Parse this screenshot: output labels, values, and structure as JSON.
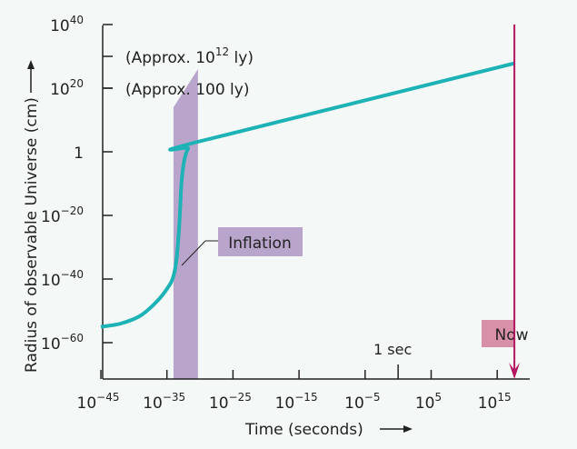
{
  "chart_data": {
    "type": "line",
    "title": "",
    "xlabel": "Time (seconds)",
    "ylabel": "Radius of observable Universe (cm)",
    "x_scale": "log10",
    "y_scale": "log10",
    "xlim_log10": [
      -46,
      19
    ],
    "ylim_log10": [
      -71,
      40
    ],
    "x_ticks": [
      {
        "exp": -45,
        "base": "10",
        "sup": "−45"
      },
      {
        "exp": -35,
        "base": "10",
        "sup": "−35"
      },
      {
        "exp": -25,
        "base": "10",
        "sup": "−25"
      },
      {
        "exp": -15,
        "base": "10",
        "sup": "−15"
      },
      {
        "exp": -5,
        "base": "10",
        "sup": "−5"
      },
      {
        "exp": 5,
        "base": "10",
        "sup": "5"
      },
      {
        "exp": 15,
        "base": "10",
        "sup": "15"
      }
    ],
    "x_special_tick": {
      "exp": 0,
      "label": "1 sec"
    },
    "y_ticks": [
      {
        "exp": 40,
        "base": "10",
        "sup": "40"
      },
      {
        "exp": 20,
        "base": "10",
        "sup": "20"
      },
      {
        "exp": 0,
        "base": "1",
        "sup": ""
      },
      {
        "exp": -20,
        "base": "10",
        "sup": "−20"
      },
      {
        "exp": -40,
        "base": "10",
        "sup": "−40"
      },
      {
        "exp": -60,
        "base": "10",
        "sup": "−60"
      }
    ],
    "y_annotations": [
      {
        "exp": 30,
        "text": "(Approx. 10",
        "sup": "12",
        "tail": " ly)"
      },
      {
        "exp": 20,
        "text": "(Approx. 100 ly)",
        "sup": "",
        "tail": ""
      }
    ],
    "series": [
      {
        "name": "Radius of observable Universe",
        "color": "#1db2b6",
        "points_log10": [
          [
            -45,
            -55
          ],
          [
            -42,
            -54
          ],
          [
            -39,
            -51.5
          ],
          [
            -36.5,
            -47
          ],
          [
            -34.8,
            -42.5
          ],
          [
            -34,
            -39
          ],
          [
            -33.5,
            -33
          ],
          [
            -33.1,
            -22
          ],
          [
            -32.8,
            -10
          ],
          [
            -32.4,
            -3
          ],
          [
            -31.8,
            1
          ],
          [
            -30.6,
            3
          ],
          [
            17.6,
            27.8
          ]
        ]
      }
    ],
    "inflation_band": {
      "label": "Inflation",
      "color": "#b9a5cb",
      "x_log10": [
        -34,
        -30.3
      ],
      "top_left_log10": 14,
      "top_right_log10": 26
    },
    "now_marker": {
      "label": "Now",
      "x_log10": 17.6,
      "color": "#b3155e",
      "label_bg": "#d890a8"
    }
  }
}
